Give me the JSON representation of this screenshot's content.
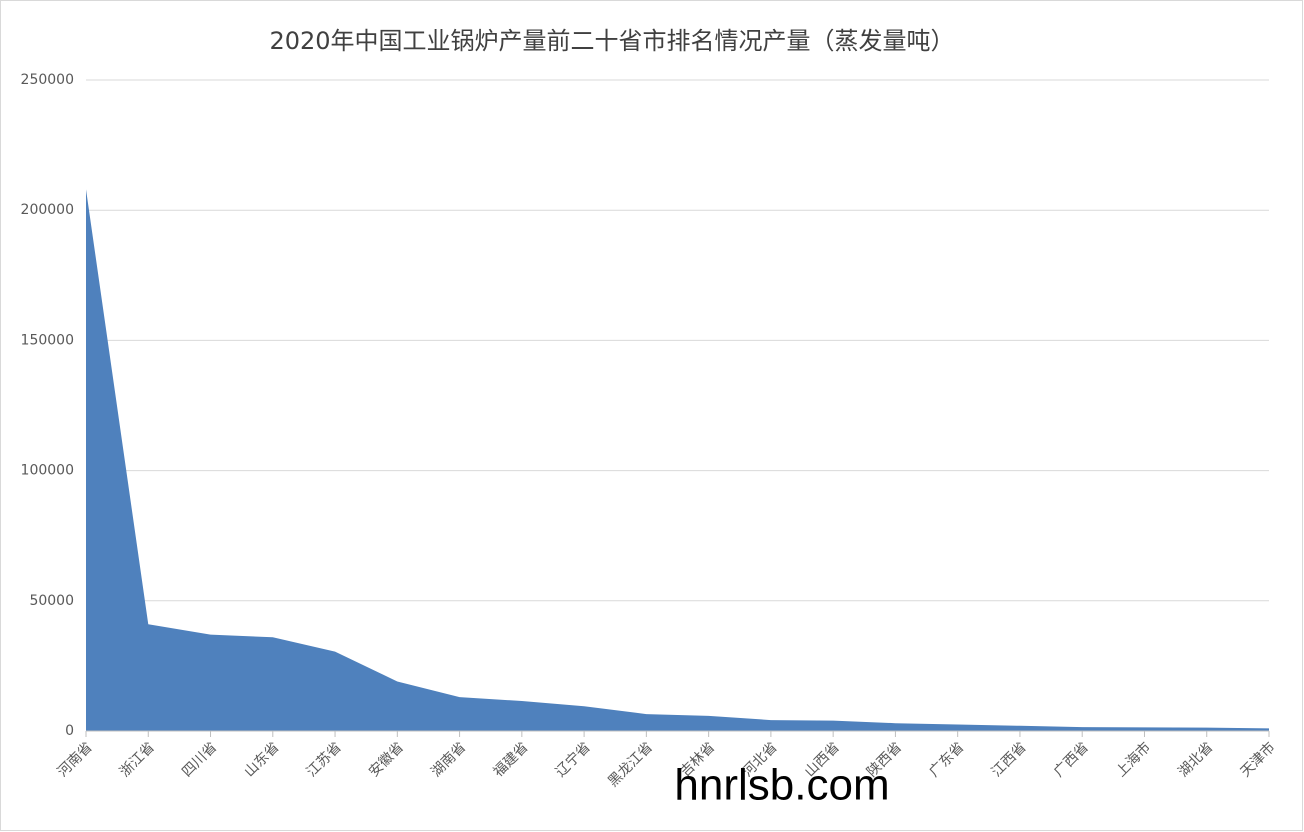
{
  "chart_data": {
    "type": "area",
    "title": "2020年中国工业锅炉产量前二十省市排名情况产量（蒸发量吨）",
    "categories": [
      "河南省",
      "浙江省",
      "四川省",
      "山东省",
      "江苏省",
      "安徽省",
      "湖南省",
      "福建省",
      "辽宁省",
      "黑龙江省",
      "吉林省",
      "河北省",
      "山西省",
      "陕西省",
      "广东省",
      "江西省",
      "广西省",
      "上海市",
      "湖北省",
      "天津市"
    ],
    "values": [
      208000,
      41000,
      37000,
      36000,
      30500,
      19000,
      13000,
      11500,
      9500,
      6500,
      5800,
      4200,
      4000,
      3000,
      2500,
      2000,
      1500,
      1400,
      1300,
      1000
    ],
    "color": "#4f81bd",
    "ylim": [
      0,
      250000
    ],
    "yticks": [
      0,
      50000,
      100000,
      150000,
      200000,
      250000
    ],
    "grid": true,
    "watermark": "hnrlsb.com"
  }
}
